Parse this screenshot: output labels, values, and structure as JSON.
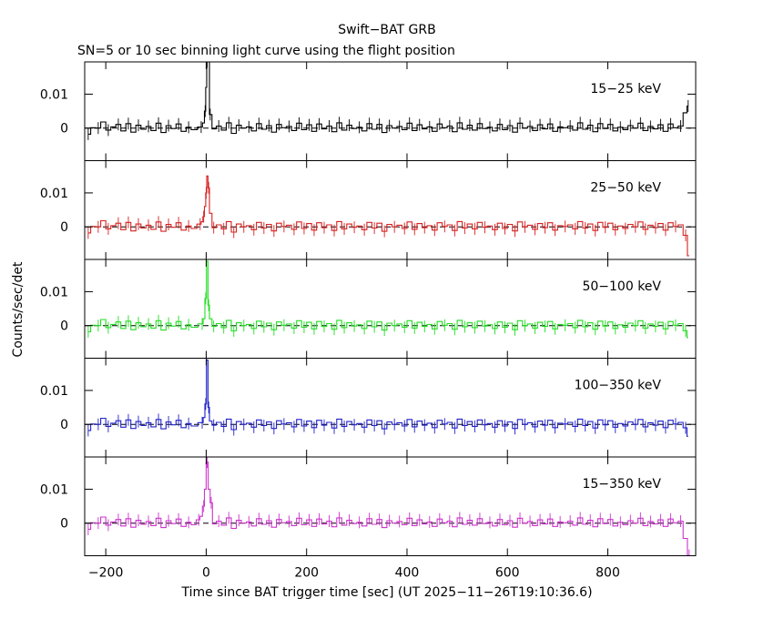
{
  "chart_data": {
    "type": "line",
    "title": "Swift−BAT GRB",
    "subtitle": "SN=5 or 10 sec binning light curve using the flight position",
    "xlabel": "Time since BAT trigger time [sec] (UT 2025−11−26T19:10:36.6)",
    "ylabel": "Counts/sec/det",
    "xlim": [
      -242,
      975
    ],
    "ylim": [
      -0.0096,
      0.0195
    ],
    "x_ticks": [
      -200,
      0,
      200,
      400,
      600,
      800
    ],
    "x_tick_labels": [
      "−200",
      "0",
      "200",
      "400",
      "600",
      "800"
    ],
    "y_ticks": [
      0,
      0.01
    ],
    "y_tick_labels": [
      "0",
      "0.01"
    ],
    "dashed_zero_line": true,
    "panels": [
      {
        "name": "15−25 keV",
        "color": "#000000",
        "peak": [
          [
            -10,
            0.0003
          ],
          [
            -5,
            0.0015
          ],
          [
            -2,
            0.005
          ],
          [
            0,
            0.012
          ],
          [
            2,
            0.02
          ],
          [
            5,
            0.02
          ],
          [
            8,
            0.004
          ]
        ],
        "noise": [
          0,
          0.0016,
          0.0015,
          0.003,
          0.001,
          0.0018,
          0.0024,
          0.0008,
          0.0026,
          0.0005,
          0.0022,
          0.0012,
          0.0019,
          0.0009,
          0.0027,
          0.0004,
          0.0021,
          0.0014,
          0.0025,
          0.0007,
          0.0017,
          0.0011,
          0.0029,
          0.0006,
          0.0023,
          0.0013,
          0.002,
          0.001,
          0.0028,
          0.0002,
          0.0022,
          0.0015,
          0.0018,
          0.0008,
          0.0026,
          0.0012,
          0.0021,
          0.0005,
          0.0024,
          0.0016,
          0.0019,
          0.0009,
          0.0027,
          0.0011,
          0.0023,
          0.0007,
          0.0025,
          0.0013,
          0.002,
          0.0006,
          0.0028,
          0.001,
          0.0022,
          0.0014,
          0.0017,
          0.0008,
          0.0026,
          0.0012,
          0.0024,
          0.0004,
          0.0021,
          0.0015,
          0.0019,
          0.0011,
          0.0027,
          0.0009,
          0.0023,
          0.0013,
          0.0018,
          0.0007,
          0.0025,
          0.0016,
          0.002,
          0.0006,
          0.0028,
          0.0012,
          0.0022,
          0.001,
          0.0026,
          0.0014,
          0.0017,
          0.0008,
          0.0024,
          0.0011,
          0.0021,
          0.0005,
          0.0027,
          0.0015,
          0.0019,
          0.0009,
          0.0023,
          0.0013,
          0.0025,
          0.0007,
          0.0018,
          0.0016,
          0.002,
          0.001,
          0.0028,
          0.0012,
          0.0022,
          0.0006,
          0.0026,
          0.0014,
          0.0024,
          0.0008,
          0.0017,
          0.0011,
          0.0021,
          0.0015,
          0.0027,
          0.0009,
          0.0019,
          0.0013,
          0.0023,
          0.0007,
          0.0025,
          0.0016,
          0.002,
          0.0012,
          0.0028
        ],
        "tail": [
          [
            955,
            0.0045
          ],
          [
            960,
            0.0065
          ]
        ]
      },
      {
        "name": "25−50 keV",
        "color": "#d62020",
        "peak": [
          [
            -12,
            0.0008
          ],
          [
            -8,
            0.0015
          ],
          [
            -5,
            0.003
          ],
          [
            -2,
            0.006
          ],
          [
            0,
            0.01
          ],
          [
            2,
            0.015
          ],
          [
            5,
            0.0115
          ],
          [
            8,
            0.004
          ]
        ],
        "noise": [
          0,
          0.0016,
          0.0015,
          0.003,
          0.001,
          0.0018,
          0.0024,
          0.0008,
          0.0026,
          0.0005,
          0.0022,
          0.0012,
          0.0019,
          0.0009,
          0.0027,
          0.0004,
          0.0021,
          0.0014,
          0.0025,
          0.0007,
          0.0017,
          0.0011,
          0.0029,
          0.0006,
          0.0023,
          0.0013,
          0.002,
          0.001,
          0.0028,
          0.0002,
          0.0022,
          0.0015,
          0.0018,
          0.0008,
          0.0026,
          0.0012,
          0.0021,
          0.0005,
          0.0024,
          0.0016,
          0.0019,
          0.0009,
          0.0027,
          0.0011,
          0.0023,
          0.0007,
          0.0025,
          0.0013,
          0.002,
          0.0006,
          0.0028,
          0.001,
          0.0022,
          0.0014,
          0.0017,
          0.0008,
          0.0026,
          0.0012,
          0.0024,
          0.0004,
          0.0021,
          0.0015,
          0.0019,
          0.0011,
          0.0027,
          0.0009,
          0.0023,
          0.0013,
          0.0018,
          0.0007,
          0.0025,
          0.0016,
          0.002,
          0.0006,
          0.0028,
          0.0012,
          0.0022,
          0.001,
          0.0026,
          0.0014,
          0.0017,
          0.0008,
          0.0024,
          0.0011,
          0.0021,
          0.0005,
          0.0027,
          0.0015,
          0.0019,
          0.0009,
          0.0023,
          0.0013,
          0.0025,
          0.0007,
          0.0018,
          0.0016,
          0.002,
          0.001,
          0.0028,
          0.0012,
          0.0022,
          0.0006,
          0.0026,
          0.0014,
          0.0024,
          0.0008,
          0.0017,
          0.0011,
          0.0021,
          0.0015,
          0.0027,
          0.0009,
          0.0019,
          0.0013,
          0.0023,
          0.0007,
          0.0025,
          0.0016,
          0.002,
          0.0012,
          0.0028
        ],
        "tail": [
          [
            955,
            -0.0025
          ],
          [
            962,
            -0.0085
          ]
        ]
      },
      {
        "name": "50−100 keV",
        "color": "#22dd22",
        "peak": [
          [
            -8,
            0.0005
          ],
          [
            -4,
            0.002
          ],
          [
            -1,
            0.008
          ],
          [
            2,
            0.019
          ],
          [
            5,
            0.006
          ],
          [
            8,
            0.002
          ]
        ],
        "noise": [
          0,
          0.0016,
          0.0015,
          0.003,
          0.001,
          0.0018,
          0.0024,
          0.0008,
          0.0026,
          0.0005,
          0.0022,
          0.0012,
          0.0019,
          0.0009,
          0.0027,
          0.0004,
          0.0021,
          0.0014,
          0.0025,
          0.0007,
          0.0017,
          0.0011,
          0.0029,
          0.0006,
          0.0023,
          0.0013,
          0.002,
          0.001,
          0.0028,
          0.0002,
          0.0022,
          0.0015,
          0.0018,
          0.0008,
          0.0026,
          0.0012,
          0.0021,
          0.0005,
          0.0024,
          0.0016,
          0.0019,
          0.0009,
          0.0027,
          0.0011,
          0.0023,
          0.0007,
          0.0025,
          0.0013,
          0.002,
          0.0006,
          0.0028,
          0.001,
          0.0022,
          0.0014,
          0.0017,
          0.0008,
          0.0026,
          0.0012,
          0.0024,
          0.0004,
          0.0021,
          0.0015,
          0.0019,
          0.0011,
          0.0027,
          0.0009,
          0.0023,
          0.0013,
          0.0018,
          0.0007,
          0.0025,
          0.0016,
          0.002,
          0.0006,
          0.0028,
          0.0012,
          0.0022,
          0.001,
          0.0026,
          0.0014,
          0.0017,
          0.0008,
          0.0024,
          0.0011,
          0.0021,
          0.0005,
          0.0027,
          0.0015,
          0.0019,
          0.0009,
          0.0023,
          0.0013,
          0.0025,
          0.0007,
          0.0018,
          0.0016,
          0.002,
          0.001,
          0.0028,
          0.0012,
          0.0022,
          0.0006,
          0.0026,
          0.0014,
          0.0024,
          0.0008,
          0.0017,
          0.0011,
          0.0021,
          0.0015,
          0.0027,
          0.0009,
          0.0019,
          0.0013,
          0.0023,
          0.0007,
          0.0025,
          0.0016,
          0.002,
          0.0012,
          0.0028
        ],
        "tail": [
          [
            955,
            -0.0015
          ],
          [
            960,
            -0.0035
          ]
        ]
      },
      {
        "name": "100−350 keV",
        "color": "#2020c8",
        "peak": [
          [
            -8,
            0.0005
          ],
          [
            -4,
            0.002
          ],
          [
            -1,
            0.006
          ],
          [
            2,
            0.019
          ],
          [
            5,
            0.005
          ],
          [
            8,
            0.001
          ]
        ],
        "noise": [
          0,
          0.0016,
          0.0015,
          0.003,
          0.001,
          0.0018,
          0.0024,
          0.0008,
          0.0026,
          0.0005,
          0.0022,
          0.0012,
          0.0019,
          0.0009,
          0.0027,
          0.0004,
          0.0021,
          0.0014,
          0.0025,
          0.0007,
          0.0017,
          0.0011,
          0.0029,
          0.0006,
          0.0023,
          0.0013,
          0.002,
          0.001,
          0.0028,
          0.0002,
          0.0022,
          0.0015,
          0.0018,
          0.0008,
          0.0026,
          0.0012,
          0.0021,
          0.0005,
          0.0024,
          0.0016,
          0.0019,
          0.0009,
          0.0027,
          0.0011,
          0.0023,
          0.0007,
          0.0025,
          0.0013,
          0.002,
          0.0006,
          0.0028,
          0.001,
          0.0022,
          0.0014,
          0.0017,
          0.0008,
          0.0026,
          0.0012,
          0.0024,
          0.0004,
          0.0021,
          0.0015,
          0.0019,
          0.0011,
          0.0027,
          0.0009,
          0.0023,
          0.0013,
          0.0018,
          0.0007,
          0.0025,
          0.0016,
          0.002,
          0.0006,
          0.0028,
          0.0012,
          0.0022,
          0.001,
          0.0026,
          0.0014,
          0.0017,
          0.0008,
          0.0024,
          0.0011,
          0.0021,
          0.0005,
          0.0027,
          0.0015,
          0.0019,
          0.0009,
          0.0023,
          0.0013,
          0.0025,
          0.0007,
          0.0018,
          0.0016,
          0.002,
          0.001,
          0.0028,
          0.0012,
          0.0022,
          0.0006,
          0.0026,
          0.0014,
          0.0024,
          0.0008,
          0.0017,
          0.0011,
          0.0021,
          0.0015,
          0.0027,
          0.0009,
          0.0019,
          0.0013,
          0.0023,
          0.0007,
          0.0025,
          0.0016,
          0.002,
          0.0012,
          0.0028
        ],
        "tail": [
          [
            955,
            -0.001
          ],
          [
            960,
            -0.0035
          ]
        ]
      },
      {
        "name": "15−350 keV",
        "color": "#cc33cc",
        "peak": [
          [
            -15,
            0.001
          ],
          [
            -10,
            0.002
          ],
          [
            -5,
            0.005
          ],
          [
            -2,
            0.01
          ],
          [
            2,
            0.018
          ],
          [
            6,
            0.01
          ],
          [
            10,
            0.006
          ]
        ],
        "noise": [
          0,
          0.0016,
          0.0015,
          0.003,
          0.001,
          0.0018,
          0.0024,
          0.0008,
          0.0026,
          0.0005,
          0.0022,
          0.0012,
          0.0019,
          0.0009,
          0.0027,
          0.0004,
          0.0021,
          0.0014,
          0.0025,
          0.0007,
          0.0017,
          0.0011,
          0.0029,
          0.0006,
          0.0023,
          0.0013,
          0.002,
          0.001,
          0.0028,
          0.0002,
          0.0022,
          0.0015,
          0.0018,
          0.0008,
          0.0026,
          0.0012,
          0.0021,
          0.0005,
          0.0024,
          0.0016,
          0.0019,
          0.0009,
          0.0027,
          0.0011,
          0.0023,
          0.0007,
          0.0025,
          0.0013,
          0.002,
          0.0006,
          0.0028,
          0.001,
          0.0022,
          0.0014,
          0.0017,
          0.0008,
          0.0026,
          0.0012,
          0.0024,
          0.0004,
          0.0021,
          0.0015,
          0.0019,
          0.0011,
          0.0027,
          0.0009,
          0.0023,
          0.0013,
          0.0018,
          0.0007,
          0.0025,
          0.0016,
          0.002,
          0.0006,
          0.0028,
          0.0012,
          0.0022,
          0.001,
          0.0026,
          0.0014,
          0.0017,
          0.0008,
          0.0024,
          0.0011,
          0.0021,
          0.0005,
          0.0027,
          0.0015,
          0.0019,
          0.0009,
          0.0023,
          0.0013,
          0.0025,
          0.0007,
          0.0018,
          0.0016,
          0.002,
          0.001,
          0.0028,
          0.0012,
          0.0022,
          0.0006,
          0.0026,
          0.0014,
          0.0024,
          0.0008,
          0.0017,
          0.0011,
          0.0021,
          0.0015,
          0.0027,
          0.0009,
          0.0019,
          0.0013,
          0.0023,
          0.0007,
          0.0025,
          0.0016,
          0.002,
          0.0012,
          0.0028
        ],
        "tail": [
          [
            955,
            -0.0045
          ],
          [
            962,
            -0.0095
          ]
        ]
      }
    ]
  }
}
